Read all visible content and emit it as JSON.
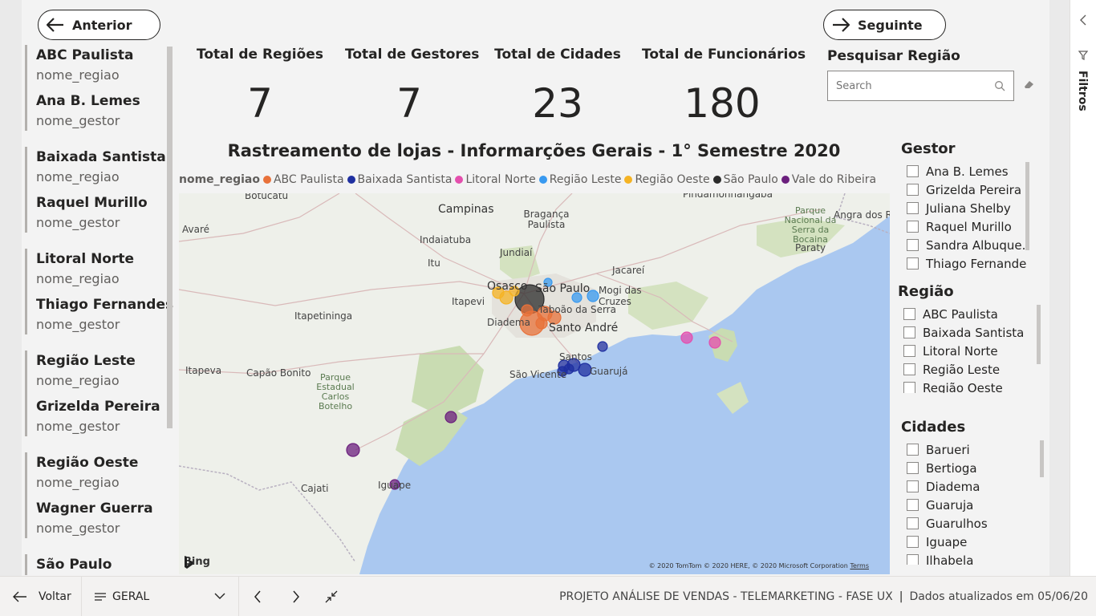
{
  "nav": {
    "prev_label": "Anterior",
    "next_label": "Seguinte"
  },
  "region_list": [
    {
      "region": "ABC Paulista",
      "region_field": "nome_regiao",
      "manager": "Ana B. Lemes",
      "manager_field": "nome_gestor"
    },
    {
      "region": "Baixada Santista",
      "region_field": "nome_regiao",
      "manager": "Raquel Murillo",
      "manager_field": "nome_gestor"
    },
    {
      "region": "Litoral Norte",
      "region_field": "nome_regiao",
      "manager": "Thiago Fernandes",
      "manager_field": "nome_gestor"
    },
    {
      "region": "Região Leste",
      "region_field": "nome_regiao",
      "manager": "Grizelda Pereira",
      "manager_field": "nome_gestor"
    },
    {
      "region": "Região Oeste",
      "region_field": "nome_regiao",
      "manager": "Wagner Guerra",
      "manager_field": "nome_gestor"
    },
    {
      "region": "São Paulo",
      "region_field": "",
      "manager": "",
      "manager_field": ""
    }
  ],
  "kpis": [
    {
      "label": "Total de Regiões",
      "value": "7"
    },
    {
      "label": "Total de Gestores",
      "value": "7"
    },
    {
      "label": "Total de Cidades",
      "value": "23"
    },
    {
      "label": "Total de Funcionários",
      "value": "180"
    }
  ],
  "search": {
    "label": "Pesquisar Região",
    "placeholder": "Search"
  },
  "map": {
    "title": "Rastreamento de lojas - Informarções Gerais - 1° Semestre 2020",
    "legend_title": "nome_regiao",
    "legend": [
      {
        "name": "ABC Paulista",
        "color": "#e8713a"
      },
      {
        "name": "Baixada Santista",
        "color": "#1f2fa0"
      },
      {
        "name": "Litoral Norte",
        "color": "#e44fad"
      },
      {
        "name": "Região Leste",
        "color": "#3899f0"
      },
      {
        "name": "Região Oeste",
        "color": "#f5b324"
      },
      {
        "name": "São Paulo",
        "color": "#2b2b2b"
      },
      {
        "name": "Vale do Ribeira",
        "color": "#6b1f7d"
      }
    ],
    "places": {
      "botucatu": "Botucatu",
      "campinas": "Campinas",
      "braganca": "Bragança Paulista",
      "pinda": "Pindamonhangaba",
      "parque_bocaina": "Parque Nacional da Serra da Bocaina",
      "angra": "Angra dos R",
      "avare": "Avaré",
      "indaiatuba": "Indaiatuba",
      "itu": "Itu",
      "jundiai": "Jundiaí",
      "jacarei": "Jacareí",
      "paraty": "Paraty",
      "osasco": "Osasco",
      "saopaulo": "São Paulo",
      "mogi": "Mogi das Cruzes",
      "itapevi": "Itapevi",
      "taboao": "Taboão da Serra",
      "itapetininga": "Itapetininga",
      "diadema": "Diadema",
      "santoandre": "Santo André",
      "santos": "Santos",
      "saovicente": "São Vicente",
      "guaruja": "Guarujá",
      "itapeva": "Itapeva",
      "capao": "Capão Bonito",
      "parque_carlos": "Parque Estadual Carlos Botelho",
      "cajati": "Cajati",
      "iguape": "Iguape"
    },
    "bing": "Bing",
    "attribution": "© 2020 TomTom © 2020 HERE, © 2020 Microsoft Corporation",
    "terms": "Terms"
  },
  "filters": {
    "gestor": {
      "title": "Gestor",
      "items": [
        "Ana B. Lemes",
        "Grizelda Pereira",
        "Juliana Shelby",
        "Raquel Murillo",
        "Sandra Albuque...",
        "Thiago Fernandes"
      ]
    },
    "regiao": {
      "title": "Região",
      "items": [
        "ABC Paulista",
        "Baixada Santista",
        "Litoral Norte",
        "Região Leste",
        "Região Oeste"
      ]
    },
    "cidades": {
      "title": "Cidades",
      "items": [
        "Barueri",
        "Bertioga",
        "Diadema",
        "Guaruja",
        "Guarulhos",
        "Iguape",
        "Ilhabela"
      ]
    }
  },
  "right_pane": {
    "label": "Filtros"
  },
  "bottom_bar": {
    "back_label": "Voltar",
    "page_label": "GERAL",
    "status": "PROJETO ANÁLISE DE VENDAS - TELEMARKETING - FASE UX",
    "updated": "Dados atualizados em 05/06/20"
  }
}
